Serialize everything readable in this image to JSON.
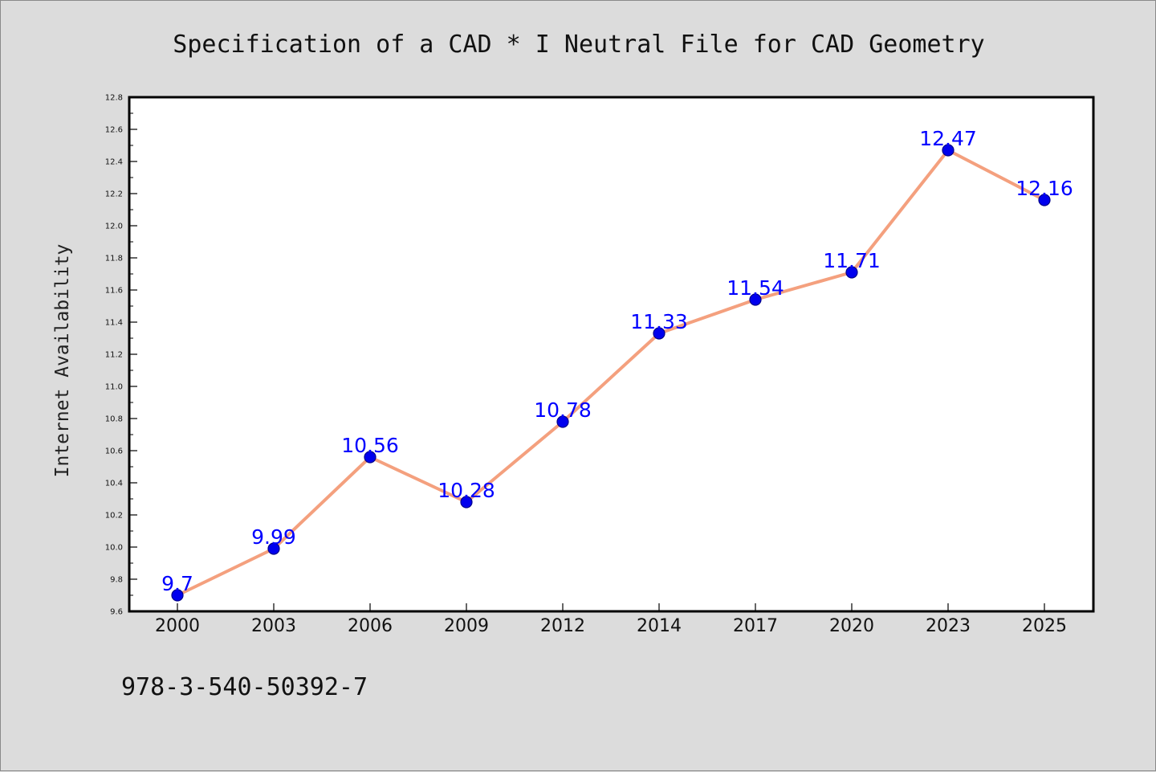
{
  "chart_data": {
    "type": "line",
    "title": "Specification of a CAD * I Neutral File for CAD Geometry",
    "xlabel": "",
    "ylabel": "Internet Availability",
    "categories": [
      "2000",
      "2003",
      "2006",
      "2009",
      "2012",
      "2014",
      "2017",
      "2020",
      "2023",
      "2025"
    ],
    "series": [
      {
        "values": [
          9.7,
          9.99,
          10.56,
          10.28,
          10.78,
          11.33,
          11.54,
          11.71,
          12.47,
          12.16
        ],
        "data_labels": [
          "9.7",
          "9.99",
          "10.56",
          "10.28",
          "10.78",
          "11.33",
          "11.54",
          "11.71",
          "12.47",
          "12.16"
        ]
      }
    ],
    "ylim": [
      9.6,
      12.8
    ],
    "yticks": [
      "9.6",
      "9.8",
      "10.0",
      "10.2",
      "10.4",
      "10.6",
      "10.8",
      "11.0",
      "11.2",
      "11.4",
      "11.6",
      "11.8",
      "12.0",
      "12.2",
      "12.4",
      "12.6",
      "12.8"
    ],
    "grid": false,
    "legend": "none",
    "colors": {
      "line": "#f4a07e",
      "marker_fill": "#0000ee",
      "marker_edge": "#00008b",
      "data_label": "#0000ff",
      "plot_background": "#ffffff",
      "figure_background": "#dcdcdc"
    }
  },
  "footnote": "978-3-540-50392-7"
}
